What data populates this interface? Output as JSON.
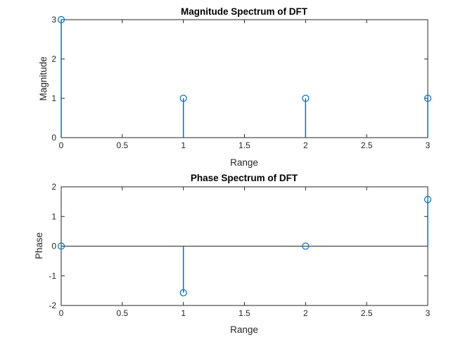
{
  "series_color": "#0072BD",
  "chart_data": [
    {
      "type": "stem",
      "title": "Magnitude Spectrum of DFT",
      "xlabel": "Range",
      "ylabel": "Magnitude",
      "xlim": [
        0,
        3
      ],
      "ylim": [
        0,
        3
      ],
      "xticks": [
        0,
        0.5,
        1,
        1.5,
        2,
        2.5,
        3
      ],
      "yticks": [
        0,
        1,
        2,
        3
      ],
      "xtick_labels": [
        "0",
        "0.5",
        "1",
        "1.5",
        "2",
        "2.5",
        "3"
      ],
      "ytick_labels": [
        "0",
        "1",
        "2",
        "3"
      ],
      "x": [
        0,
        1,
        2,
        3
      ],
      "y": [
        3,
        1,
        1,
        1
      ],
      "grid": false
    },
    {
      "type": "stem",
      "title": "Phase Spectrum of DFT",
      "xlabel": "Range",
      "ylabel": "Phase",
      "xlim": [
        0,
        3
      ],
      "ylim": [
        -2,
        2
      ],
      "xticks": [
        0,
        0.5,
        1,
        1.5,
        2,
        2.5,
        3
      ],
      "yticks": [
        -2,
        -1,
        0,
        1,
        2
      ],
      "xtick_labels": [
        "0",
        "0.5",
        "1",
        "1.5",
        "2",
        "2.5",
        "3"
      ],
      "ytick_labels": [
        "-2",
        "-1",
        "0",
        "1",
        "2"
      ],
      "x": [
        0,
        1,
        2,
        3
      ],
      "y": [
        0,
        -1.5708,
        0,
        1.5708
      ],
      "grid": false
    }
  ]
}
